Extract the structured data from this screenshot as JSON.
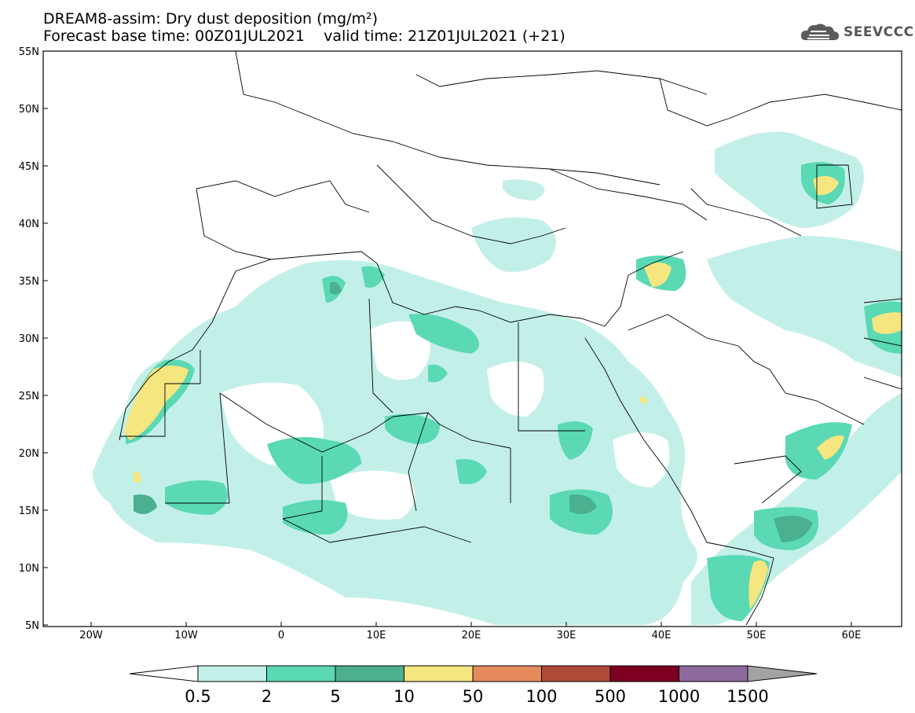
{
  "header": {
    "title_line1": "DREAM8-assim: Dry dust deposition (mg/m²)",
    "title_line2": "Forecast base time: 00Z01JUL2021    valid time: 21Z01JUL2021 (+21)"
  },
  "logo": {
    "text": "SEEVCCC",
    "icon": "cloud-icon"
  },
  "map": {
    "type": "geographic-field",
    "lon_range": [
      -25,
      65
    ],
    "lat_range": [
      5,
      55
    ],
    "lat_ticks": [
      "5N",
      "10N",
      "15N",
      "20N",
      "25N",
      "30N",
      "35N",
      "40N",
      "45N",
      "50N",
      "55N"
    ],
    "lon_ticks": [
      "20W",
      "10W",
      "0",
      "10E",
      "20E",
      "30E",
      "40E",
      "50E",
      "60E"
    ],
    "colors": {
      "c1": "#b9eee6",
      "c2": "#5ad9b4",
      "c3": "#4ab08f",
      "c4": "#f2e07a"
    }
  },
  "colorbar": {
    "labels": [
      "0.5",
      "2",
      "5",
      "10",
      "50",
      "100",
      "500",
      "1000",
      "1500"
    ],
    "colors": [
      "#c2f0e8",
      "#5ad9b4",
      "#4ab08f",
      "#f5e680",
      "#e68a5c",
      "#b04a38",
      "#7d0020",
      "#8c6a9e"
    ],
    "over_color": "#a3a3a3",
    "under_color": "#ffffff"
  }
}
